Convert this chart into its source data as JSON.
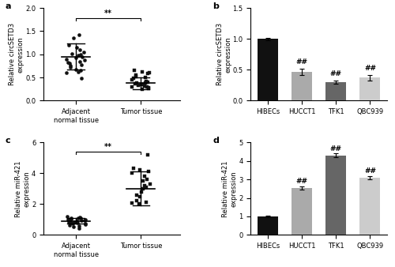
{
  "panel_a": {
    "title": "a",
    "ylabel": "Relative circSETD3\nexpression",
    "ylim": [
      0,
      2.0
    ],
    "yticks": [
      0.0,
      0.5,
      1.0,
      1.5,
      2.0
    ],
    "group1_label": "Adjacent\nnormal tissue",
    "group2_label": "Tumor tissue",
    "group1_mean": 0.95,
    "group1_sd": 0.28,
    "group2_mean": 0.38,
    "group2_sd": 0.13,
    "group1_points": [
      0.48,
      0.6,
      0.62,
      0.65,
      0.68,
      0.72,
      0.75,
      0.78,
      0.8,
      0.82,
      0.85,
      0.88,
      0.9,
      0.92,
      0.95,
      0.98,
      1.0,
      1.02,
      1.05,
      1.1,
      1.15,
      1.2,
      1.35,
      1.42
    ],
    "group2_points": [
      0.25,
      0.27,
      0.28,
      0.3,
      0.3,
      0.32,
      0.33,
      0.35,
      0.35,
      0.36,
      0.38,
      0.38,
      0.4,
      0.4,
      0.42,
      0.45,
      0.48,
      0.5,
      0.52,
      0.55,
      0.58,
      0.6,
      0.62,
      0.65
    ],
    "significance": "**"
  },
  "panel_b": {
    "title": "b",
    "ylabel": "Relative circSETD3\nexpression",
    "ylim": [
      0,
      1.5
    ],
    "yticks": [
      0.0,
      0.5,
      1.0,
      1.5
    ],
    "categories": [
      "HIBECs",
      "HUCCT1",
      "TFK1",
      "QBC939"
    ],
    "values": [
      1.0,
      0.47,
      0.3,
      0.37
    ],
    "errors": [
      0.02,
      0.05,
      0.03,
      0.04
    ],
    "colors": [
      "#111111",
      "#aaaaaa",
      "#666666",
      "#cccccc"
    ],
    "annotations": [
      "",
      "##",
      "##",
      "##"
    ]
  },
  "panel_c": {
    "title": "c",
    "ylabel": "Relative miR-421\nexpression",
    "ylim": [
      0,
      6
    ],
    "yticks": [
      0,
      2,
      4,
      6
    ],
    "group1_label": "Adjacent\nnormal tissue",
    "group2_label": "Tumor tissue",
    "group1_mean": 0.9,
    "group1_sd": 0.18,
    "group2_mean": 3.0,
    "group2_sd": 1.1,
    "group1_points": [
      0.45,
      0.55,
      0.6,
      0.65,
      0.7,
      0.72,
      0.75,
      0.78,
      0.8,
      0.82,
      0.85,
      0.88,
      0.9,
      0.92,
      0.95,
      0.98,
      1.0,
      1.02,
      1.05,
      1.08,
      1.1,
      1.12,
      1.15,
      1.2
    ],
    "group2_points": [
      2.0,
      2.05,
      2.1,
      2.2,
      2.5,
      2.6,
      2.8,
      3.0,
      3.1,
      3.2,
      3.3,
      3.5,
      3.6,
      3.8,
      4.0,
      4.1,
      4.2,
      4.3,
      5.2
    ],
    "significance": "**"
  },
  "panel_d": {
    "title": "d",
    "ylabel": "Relative miR-421\nexpression",
    "ylim": [
      0,
      5
    ],
    "yticks": [
      0,
      1,
      2,
      3,
      4,
      5
    ],
    "categories": [
      "HIBECs",
      "HUCCT1",
      "TFK1",
      "QBC939"
    ],
    "values": [
      1.0,
      2.55,
      4.3,
      3.1
    ],
    "errors": [
      0.04,
      0.08,
      0.1,
      0.08
    ],
    "colors": [
      "#111111",
      "#aaaaaa",
      "#666666",
      "#cccccc"
    ],
    "annotations": [
      "",
      "##",
      "##",
      "##"
    ]
  },
  "bg_color": "#ffffff",
  "dot_color": "#111111"
}
